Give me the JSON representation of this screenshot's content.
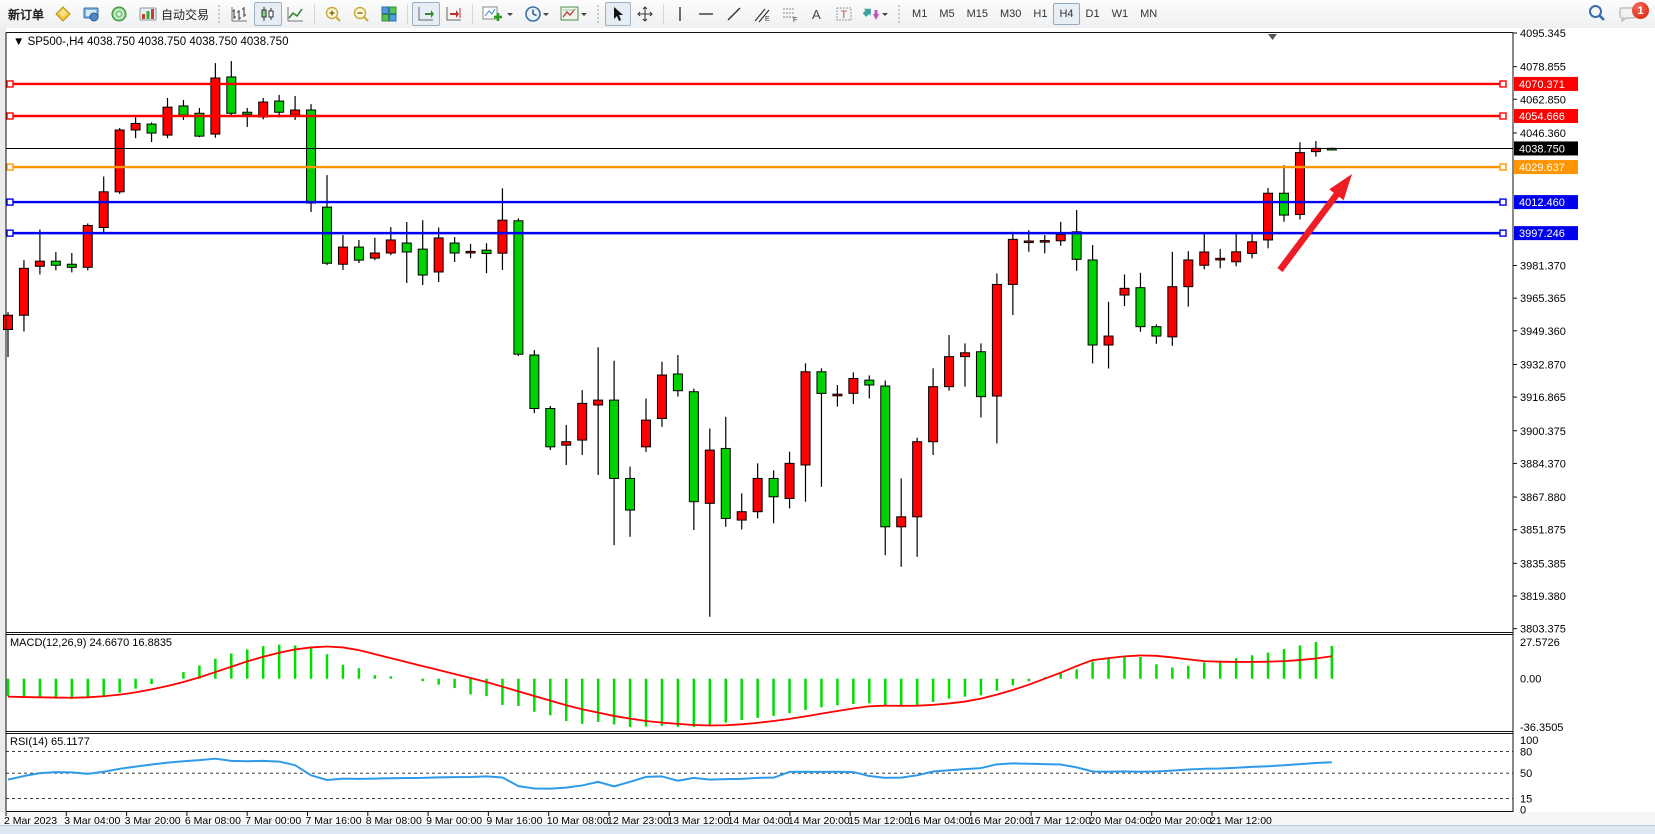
{
  "toolbar": {
    "new_order_label": "新订单",
    "auto_trading_label": "自动交易",
    "timeframes": {
      "items": [
        "M1",
        "M5",
        "M15",
        "M30",
        "H1",
        "H4",
        "D1",
        "W1",
        "MN"
      ],
      "selected": "H4"
    },
    "notification_count": "1"
  },
  "chart": {
    "title": "SP500-,H4",
    "ohlc_display": [
      "4038.750",
      "4038.750",
      "4038.750",
      "4038.750"
    ]
  },
  "chart_data": {
    "type": "candlestick",
    "symbol": "SP500-",
    "period": "H4",
    "price_axis_ticks": [
      "4095.345",
      "4078.855",
      "4062.850",
      "4046.360",
      "3981.370",
      "3965.365",
      "3949.360",
      "3932.870",
      "3916.865",
      "3900.375",
      "3884.370",
      "3867.880",
      "3851.875",
      "3835.385",
      "3819.380",
      "3803.375"
    ],
    "price_axis_tick_values": [
      4095.345,
      4078.855,
      4062.85,
      4046.36,
      3981.37,
      3965.365,
      3949.36,
      3932.87,
      3916.865,
      3900.375,
      3884.37,
      3867.88,
      3851.875,
      3835.385,
      3819.38,
      3803.375
    ],
    "current_price": {
      "label": "4038.750",
      "value": 4038.75
    },
    "hlines": [
      {
        "value": 4070.371,
        "label": "4070.371",
        "color": "#ff0000"
      },
      {
        "value": 4054.666,
        "label": "4054.666",
        "color": "#ff0000"
      },
      {
        "value": 4029.637,
        "label": "4029.637",
        "color": "#ff9500"
      },
      {
        "value": 4012.46,
        "label": "4012.460",
        "color": "#0000f0"
      },
      {
        "value": 3997.246,
        "label": "3997.246",
        "color": "#0000f0"
      }
    ],
    "candles": [
      [
        3950,
        3958.5,
        3936.5,
        3957
      ],
      [
        3957,
        3984,
        3949,
        3980
      ],
      [
        3981,
        3999,
        3977,
        3983.5
      ],
      [
        3983.5,
        3988,
        3979,
        3981.5
      ],
      [
        3982,
        3987.5,
        3978,
        3980.5
      ],
      [
        3980.5,
        4002,
        3979,
        4001
      ],
      [
        4000,
        4025,
        3997,
        4017.5
      ],
      [
        4017.5,
        4048.8,
        4016.5,
        4047.8
      ],
      [
        4047.8,
        4054,
        4043.8,
        4051
      ],
      [
        4050.7,
        4051.5,
        4041.9,
        4046.3
      ],
      [
        4045.3,
        4063.5,
        4043.8,
        4059
      ],
      [
        4059.6,
        4062.5,
        4052.7,
        4055.1
      ],
      [
        4056,
        4058.6,
        4044.3,
        4044.8
      ],
      [
        4045.8,
        4080.6,
        4044,
        4073.3
      ],
      [
        4073.8,
        4081.6,
        4054.2,
        4056
      ],
      [
        4056.5,
        4058.6,
        4049.3,
        4055.5
      ],
      [
        4054.2,
        4063.5,
        4053,
        4061.5
      ],
      [
        4062,
        4065,
        4054,
        4056.5
      ],
      [
        4055.1,
        4064.5,
        4052.7,
        4057.6
      ],
      [
        4057.6,
        4060.5,
        4007.6,
        4012
      ],
      [
        4010,
        4025.7,
        3981.6,
        3982.5
      ],
      [
        3982,
        3996.3,
        3979.2,
        3990.4
      ],
      [
        3990.4,
        3993.9,
        3982.6,
        3984
      ],
      [
        3985,
        3995,
        3984,
        3987.5
      ],
      [
        3987.5,
        4000.2,
        3986.5,
        3993.9
      ],
      [
        3992.4,
        4002.7,
        3972.8,
        3988
      ],
      [
        3989.4,
        4003.6,
        3971.8,
        3976.7
      ],
      [
        3978.2,
        4000,
        3973.3,
        3994.9
      ],
      [
        3992.4,
        3995.3,
        3983.1,
        3987.5
      ],
      [
        3987.7,
        3992,
        3985,
        3988.3
      ],
      [
        3988.9,
        3992.3,
        3977.6,
        3987.3
      ],
      [
        3987.4,
        4019.2,
        3979.2,
        4003.6
      ],
      [
        4003.3,
        4004.5,
        3937,
        3937.9
      ],
      [
        3937.5,
        3939.9,
        3909,
        3911.3
      ],
      [
        3911.3,
        3912.5,
        3890.9,
        3892.5
      ],
      [
        3893.3,
        3903.2,
        3883.6,
        3895
      ],
      [
        3895.8,
        3920.3,
        3888.5,
        3913.8
      ],
      [
        3913,
        3941.3,
        3878.7,
        3915.4
      ],
      [
        3915.4,
        3934.7,
        3844.3,
        3877
      ],
      [
        3877,
        3882.8,
        3848.4,
        3861.5
      ],
      [
        3892.5,
        3916.2,
        3890,
        3905.6
      ],
      [
        3906.4,
        3934.2,
        3902.3,
        3927.7
      ],
      [
        3928.2,
        3937.5,
        3917.1,
        3920
      ],
      [
        3919.5,
        3921,
        3851.7,
        3865.6
      ],
      [
        3864.8,
        3901.5,
        3809.2,
        3890.9
      ],
      [
        3891.7,
        3907.2,
        3853.3,
        3857.4
      ],
      [
        3856.6,
        3869.7,
        3852,
        3860.7
      ],
      [
        3860.7,
        3884.4,
        3857.4,
        3877
      ],
      [
        3877,
        3881,
        3855,
        3868
      ],
      [
        3867.2,
        3890.1,
        3862.3,
        3884.4
      ],
      [
        3883.6,
        3933.4,
        3865.6,
        3929.3
      ],
      [
        3929.3,
        3931,
        3872.9,
        3918.7
      ],
      [
        3917.5,
        3922.8,
        3912.2,
        3918.3
      ],
      [
        3918.7,
        3929,
        3913.5,
        3926
      ],
      [
        3925.2,
        3927.5,
        3916.2,
        3922.8
      ],
      [
        3922.3,
        3925,
        3839.4,
        3853.3
      ],
      [
        3853.3,
        3877,
        3833.7,
        3858.2
      ],
      [
        3858.2,
        3897,
        3838.6,
        3895
      ],
      [
        3895,
        3931,
        3888.5,
        3922
      ],
      [
        3922,
        3947.3,
        3920,
        3936.7
      ],
      [
        3936.7,
        3943.2,
        3922,
        3938.6
      ],
      [
        3939.1,
        3943.2,
        3906.9,
        3917.1
      ],
      [
        3917.4,
        3977.5,
        3894.2,
        3972.1
      ],
      [
        3972.1,
        3997.9,
        3957.1,
        3994.2
      ],
      [
        3992.8,
        3998.7,
        3988.1,
        3993.4
      ],
      [
        3993.2,
        3996.3,
        3987.3,
        3993.6
      ],
      [
        3993.5,
        4002.8,
        3991,
        3996.6
      ],
      [
        3997.9,
        4008.6,
        3978.8,
        3984.4
      ],
      [
        3984.1,
        3991.4,
        3933.4,
        3942.4
      ],
      [
        3942.4,
        3963.6,
        3930.9,
        3946.8
      ],
      [
        3966.9,
        3977,
        3961.5,
        3970.2
      ],
      [
        3970.5,
        3977.8,
        3948.9,
        3951.4
      ],
      [
        3951.4,
        3952.5,
        3943,
        3946.8
      ],
      [
        3946.4,
        3988.1,
        3942,
        3971
      ],
      [
        3971,
        3988.4,
        3961.2,
        3984.1
      ],
      [
        3981.5,
        3997.1,
        3979.5,
        3988
      ],
      [
        3984.3,
        3989.5,
        3980,
        3984.9
      ],
      [
        3983.2,
        3997.5,
        3981,
        3988.1
      ],
      [
        3987.3,
        3997,
        3984.9,
        3993
      ],
      [
        3993.9,
        4019.4,
        3989.8,
        4016.8
      ],
      [
        4016.8,
        4030.6,
        4002.8,
        4006.1
      ],
      [
        4006.4,
        4041.8,
        4003.9,
        4036.7
      ],
      [
        4037.2,
        4042.4,
        4034.7,
        4038.8
      ],
      [
        4038.8,
        4039.2,
        4038,
        4038.4
      ]
    ],
    "up_color_convention": "red-up-green-down",
    "macd": {
      "title": "MACD(12,26,9)",
      "values_display": "24.6670 16.8835",
      "axis_labels": [
        "27.5726",
        "0.00",
        "-36.3505"
      ],
      "axis_values": [
        27.5726,
        0.0,
        -36.3505
      ],
      "histogram": [
        -13,
        -14,
        -14.5,
        -15,
        -15.2,
        -14.5,
        -13,
        -10.5,
        -7.5,
        -4,
        0,
        5,
        10,
        15,
        19,
        22,
        24.5,
        25.6,
        25,
        23.3,
        18.4,
        10.5,
        7.9,
        2.6,
        1.8,
        0,
        -1.8,
        -4.5,
        -7,
        -11.8,
        -13.1,
        -19.7,
        -20.5,
        -24.9,
        -27.5,
        -31.8,
        -33.9,
        -32.5,
        -34.4,
        -36.35,
        -36,
        -35.5,
        -36.2,
        -36.3,
        -35,
        -33,
        -31,
        -29.5,
        -28,
        -26,
        -23.5,
        -21.5,
        -20,
        -19,
        -18.5,
        -20,
        -21,
        -20,
        -17.5,
        -15,
        -13.5,
        -12.5,
        -9,
        -5,
        -2,
        1,
        4,
        7,
        13,
        15,
        17.1,
        16.3,
        10.8,
        8.4,
        9.7,
        12.3,
        13.6,
        15.5,
        17.6,
        19.7,
        22.3,
        25,
        27.57,
        24.67
      ],
      "signal": [
        -13.5,
        -13.8,
        -14,
        -14.2,
        -14.3,
        -14,
        -13.2,
        -12,
        -10.3,
        -8,
        -5.5,
        -2.5,
        1,
        5,
        9,
        13,
        16.5,
        19.5,
        22,
        23.5,
        24.2,
        23.5,
        21.5,
        18.5,
        15.5,
        12.5,
        9.5,
        6.5,
        3.5,
        0.5,
        -2.5,
        -6,
        -9.5,
        -13,
        -16.5,
        -20,
        -23,
        -25.5,
        -28,
        -30,
        -31.8,
        -33,
        -34,
        -34.8,
        -35.2,
        -35,
        -34.3,
        -33.2,
        -31.8,
        -30.2,
        -28.3,
        -26.3,
        -24.3,
        -22.4,
        -20.7,
        -20.3,
        -20.4,
        -20.3,
        -19.7,
        -18.6,
        -17.2,
        -15,
        -12,
        -8.5,
        -4.5,
        0,
        4.5,
        9.5,
        14,
        15.5,
        16.8,
        17.5,
        17.2,
        16,
        14.5,
        13.2,
        12.8,
        12.6,
        12.6,
        12.8,
        13.2,
        14,
        15.2,
        16.88
      ]
    },
    "rsi": {
      "title": "RSI(14)",
      "value_display": "65.1177",
      "levels": [
        100,
        80,
        50,
        15,
        0
      ],
      "level_labels": [
        "100",
        "80",
        "50",
        "15",
        "0"
      ],
      "series": [
        41,
        46,
        50,
        51.5,
        51,
        49,
        52,
        56,
        59,
        62,
        64.5,
        66.5,
        68,
        70,
        67,
        66.5,
        67,
        66,
        61,
        47,
        40.5,
        42.4,
        42,
        42.5,
        43,
        43.3,
        43.5,
        44.2,
        44.5,
        44.7,
        45.5,
        44,
        32,
        28.8,
        28.6,
        30,
        33,
        37.9,
        31.7,
        38,
        44.8,
        45.5,
        39.5,
        43.5,
        41,
        41.7,
        42,
        43.5,
        43.8,
        51.7,
        52,
        51.8,
        52,
        51.5,
        46,
        43.5,
        43.8,
        47,
        52.3,
        54,
        55.5,
        57,
        62.2,
        63.5,
        63,
        62.5,
        62,
        58,
        52.3,
        52,
        52.5,
        52,
        52.3,
        53.5,
        55,
        56,
        56.5,
        57.5,
        58.6,
        59.5,
        61,
        62.5,
        64,
        65.12
      ]
    },
    "time_labels": [
      "2 Mar 2023",
      "3 Mar 04:00",
      "3 Mar 20:00",
      "6 Mar 08:00",
      "7 Mar 00:00",
      "7 Mar 16:00",
      "8 Mar 08:00",
      "9 Mar 00:00",
      "9 Mar 16:00",
      "10 Mar 08:00",
      "12 Mar 23:00",
      "13 Mar 12:00",
      "14 Mar 04:00",
      "14 Mar 20:00",
      "15 Mar 12:00",
      "16 Mar 04:00",
      "16 Mar 20:00",
      "17 Mar 12:00",
      "20 Mar 04:00",
      "20 Mar 20:00",
      "21 Mar 12:00"
    ],
    "annotation": {
      "type": "arrow",
      "color": "#ee1c25",
      "from_xy": [
        1280,
        270
      ],
      "to_xy": [
        1352,
        174
      ]
    }
  }
}
